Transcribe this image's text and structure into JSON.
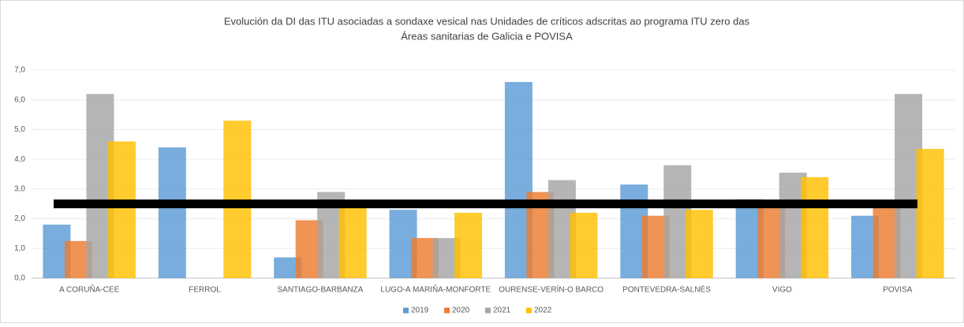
{
  "chart_data": {
    "type": "bar",
    "title": [
      "Evolución da DI das ITU asociadas a sondaxe vesical nas Unidades de críticos adscritas ao programa ITU zero das",
      "Áreas sanitarias de Galicia e POVISA"
    ],
    "categories": [
      "A CORUÑA-CEE",
      "FERROL",
      "SANTIAGO-BARBANZA",
      "LUGO-A MARIÑA-MONFORTE",
      "OURENSE-VERÍN-O BARCO",
      "PONTEVEDRA-SALNÉS",
      "VIGO",
      "POVISA"
    ],
    "series": [
      {
        "name": "2019",
        "color": "#5b9bd5",
        "values": [
          1.8,
          4.4,
          0.7,
          2.3,
          6.6,
          3.15,
          2.65,
          2.1
        ]
      },
      {
        "name": "2020",
        "color": "#ed7d31",
        "values": [
          1.25,
          0,
          1.95,
          1.35,
          2.9,
          2.1,
          2.4,
          2.4
        ]
      },
      {
        "name": "2021",
        "color": "#a5a5a5",
        "values": [
          6.2,
          0,
          2.9,
          1.35,
          3.3,
          3.8,
          3.55,
          6.2
        ]
      },
      {
        "name": "2022",
        "color": "#ffc000",
        "values": [
          4.6,
          5.3,
          2.4,
          2.2,
          2.2,
          2.3,
          3.4,
          4.35
        ]
      }
    ],
    "ylim": [
      0,
      7
    ],
    "yticks": [
      {
        "value": 0,
        "label": "0,0"
      },
      {
        "value": 1,
        "label": "1,0"
      },
      {
        "value": 2,
        "label": "2,0"
      },
      {
        "value": 3,
        "label": "3,0"
      },
      {
        "value": 4,
        "label": "4,0"
      },
      {
        "value": 5,
        "label": "5,0"
      },
      {
        "value": 6,
        "label": "6,0"
      },
      {
        "value": 7,
        "label": "7,0"
      }
    ],
    "grid": true,
    "legend": "bottom",
    "reference_line": {
      "value": 2.5,
      "color": "#000000"
    }
  }
}
